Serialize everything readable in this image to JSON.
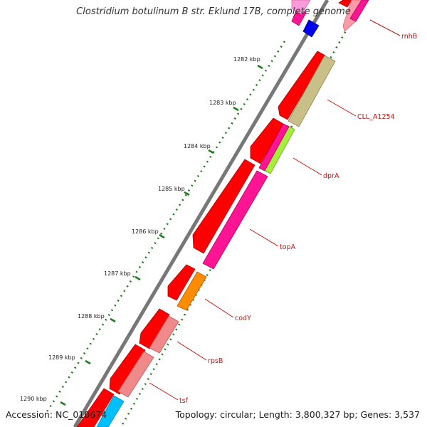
{
  "title": "Clostridium botulinum B str. Eklund 17B, complete genome",
  "accession": "Accession: NC_010674",
  "topology": "Topology: circular; Length: 3,800,327 bp; Genes: 3,537",
  "ticks": [
    "1282 kbp",
    "1283 kbp",
    "1284 kbp",
    "1285 kbp",
    "1286 kbp",
    "1287 kbp",
    "1288 kbp",
    "1289 kbp",
    "1290 kbp"
  ],
  "genes": [
    "rnhB",
    "CLL_A1254",
    "dprA",
    "topA",
    "codY",
    "rpsB",
    "tsf"
  ],
  "colors": {
    "backbone": "#8a8a8a",
    "cds": "#ff0000",
    "tick": "#1f7a1f",
    "label": "#cc1111",
    "rnhB": "#ff9aa8",
    "CLL_A1254": "#c8c088",
    "dprA": "#a6ee3c",
    "topA": "#ff1493",
    "codY": "#ff8c00",
    "rpsB": "#f08a8a",
    "tsf": "#f08a8a",
    "tsf_partner": "#00bfff"
  }
}
